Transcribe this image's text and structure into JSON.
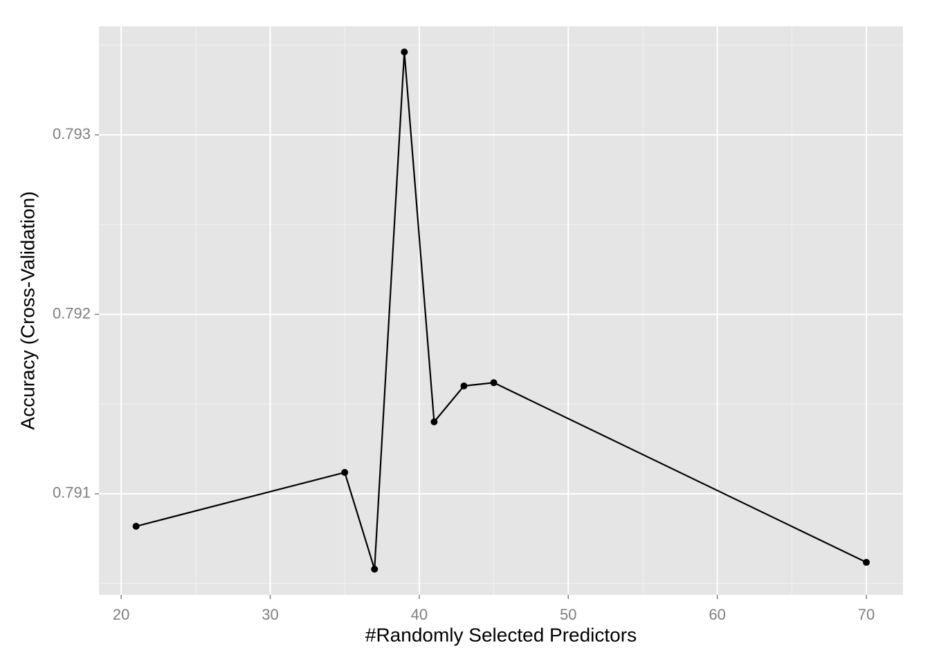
{
  "chart_data": {
    "type": "line",
    "x_label": "#Randomly Selected Predictors",
    "y_label": "Accuracy (Cross-Validation)",
    "x": [
      21,
      35,
      37,
      39,
      41,
      43,
      45,
      70
    ],
    "series": [
      {
        "color": "#000000",
        "values": [
          0.790819,
          0.791119,
          0.79058,
          0.793462,
          0.791401,
          0.791601,
          0.791619,
          0.790618
        ]
      }
    ],
    "xlim": [
      18.51,
      72.46
    ],
    "ylim": [
      0.790437,
      0.793605
    ],
    "xticks": [
      20,
      30,
      40,
      50,
      60,
      70
    ],
    "yticks": [
      0.791,
      0.792,
      0.793
    ],
    "xminor": [
      25,
      35,
      45,
      55,
      65
    ],
    "yminor": [
      0.7905,
      0.7915,
      0.7925,
      0.7935
    ],
    "grid": true,
    "markers": true,
    "panel_color": "#e5e5e5"
  }
}
